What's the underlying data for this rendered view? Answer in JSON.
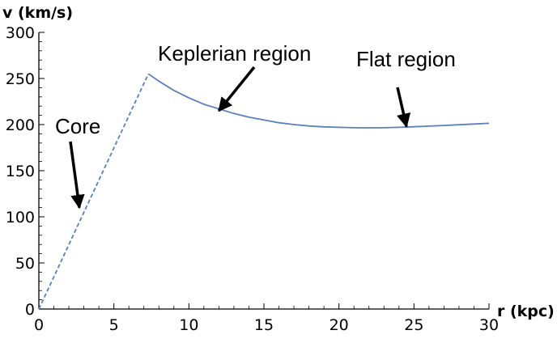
{
  "chart_data": {
    "type": "line",
    "title": "",
    "xlabel": "r (kpc)",
    "ylabel": "v (km/s)",
    "xlim": [
      0,
      30
    ],
    "ylim": [
      0,
      300
    ],
    "xticks": [
      0,
      5,
      10,
      15,
      20,
      25,
      30
    ],
    "yticks": [
      0,
      50,
      100,
      150,
      200,
      250,
      300
    ],
    "grid": false,
    "legend": "none",
    "series": [
      {
        "style": "dashed",
        "color": "#5b7fbf",
        "x": [
          0,
          7.3
        ],
        "y": [
          0,
          255
        ]
      },
      {
        "style": "solid",
        "color": "#5b7fbf",
        "x": [
          7.3,
          8,
          9,
          10,
          11,
          12,
          13,
          14,
          15,
          16,
          17,
          18,
          19,
          20,
          21,
          22,
          23,
          24,
          25,
          26,
          27,
          28,
          29,
          30
        ],
        "y": [
          255,
          247,
          237,
          229,
          222,
          217,
          212,
          208,
          205,
          202,
          200,
          198.5,
          197.5,
          197,
          196.6,
          196.5,
          196.6,
          197,
          197.6,
          198.3,
          199,
          199.8,
          200.6,
          201.4
        ]
      }
    ],
    "annotations": [
      {
        "text": "Core",
        "arrow_to": [
          2.7,
          110
        ]
      },
      {
        "text": "Keplerian region",
        "arrow_to": [
          12,
          215
        ]
      },
      {
        "text": "Flat region",
        "arrow_to": [
          24.5,
          198
        ]
      }
    ]
  }
}
